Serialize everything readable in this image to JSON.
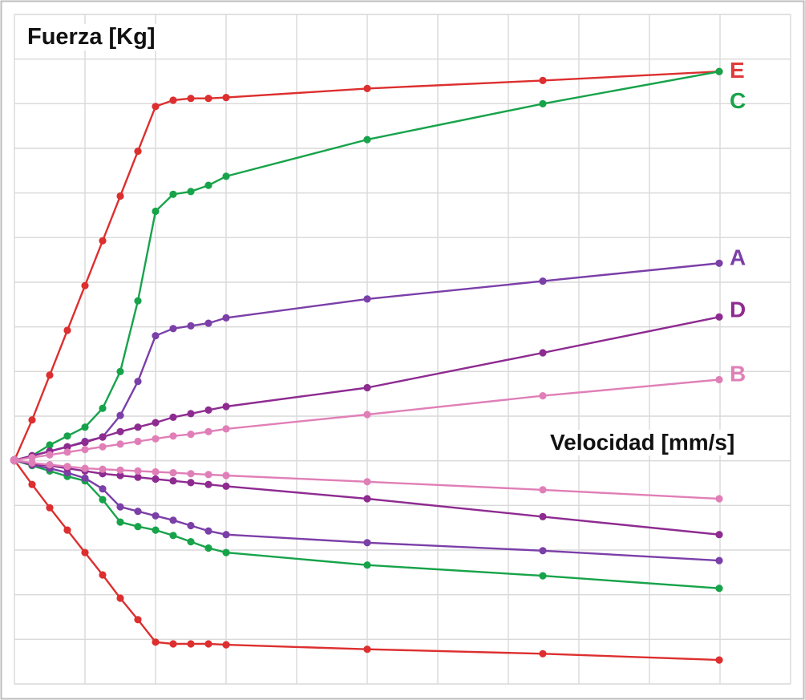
{
  "chart_data": {
    "type": "line",
    "title": "",
    "ylabel": "Fuerza [Kg]",
    "xlabel": "Velocidad [mm/s]",
    "grid": true,
    "legend": "inline labels at line ends (right)",
    "xlim": [
      0,
      44
    ],
    "ylim": [
      -25,
      45
    ],
    "x": [
      0,
      1,
      2,
      3,
      4,
      5,
      6,
      7,
      8,
      9,
      10,
      11,
      12,
      13,
      21,
      30,
      40
    ],
    "series": [
      {
        "name": "E",
        "color": "#dd2f2f",
        "label_color": "#e03a3a",
        "upper": [
          [
            0,
            0
          ],
          [
            1,
            4.5
          ],
          [
            2,
            9.5
          ],
          [
            3,
            14.5
          ],
          [
            4,
            19.5
          ],
          [
            5,
            24.5
          ],
          [
            6,
            29.5
          ],
          [
            7,
            34.5
          ],
          [
            8,
            39.5
          ],
          [
            9,
            40.2
          ],
          [
            10,
            40.4
          ],
          [
            11,
            40.4
          ],
          [
            12,
            40.5
          ],
          [
            21,
            41.5
          ],
          [
            30,
            42.4
          ],
          [
            40,
            43.4
          ]
        ],
        "lower": [
          [
            0,
            0
          ],
          [
            1,
            -2.7
          ],
          [
            2,
            -5.3
          ],
          [
            3,
            -7.8
          ],
          [
            4,
            -10.3
          ],
          [
            5,
            -12.8
          ],
          [
            6,
            -15.4
          ],
          [
            7,
            -17.8
          ],
          [
            8,
            -20.3
          ],
          [
            9,
            -20.5
          ],
          [
            10,
            -20.5
          ],
          [
            11,
            -20.5
          ],
          [
            12,
            -20.6
          ],
          [
            21,
            -21.1
          ],
          [
            30,
            -21.6
          ],
          [
            40,
            -22.3
          ]
        ]
      },
      {
        "name": "C",
        "color": "#17a34a",
        "label_color": "#1aa34a",
        "upper": [
          [
            0,
            0
          ],
          [
            1,
            0.5
          ],
          [
            2,
            1.7
          ],
          [
            3,
            2.7
          ],
          [
            4,
            3.7
          ],
          [
            5,
            5.8
          ],
          [
            6,
            9.9
          ],
          [
            7,
            17.8
          ],
          [
            8,
            27.8
          ],
          [
            9,
            29.7
          ],
          [
            10,
            30.0
          ],
          [
            11,
            30.7
          ],
          [
            12,
            31.7
          ],
          [
            21,
            35.8
          ],
          [
            30,
            39.8
          ],
          [
            40,
            43.4
          ]
        ],
        "lower": [
          [
            0,
            0
          ],
          [
            1,
            -0.6
          ],
          [
            2,
            -1.2
          ],
          [
            3,
            -1.8
          ],
          [
            4,
            -2.3
          ],
          [
            5,
            -4.4
          ],
          [
            6,
            -6.9
          ],
          [
            7,
            -7.4
          ],
          [
            8,
            -7.8
          ],
          [
            9,
            -8.4
          ],
          [
            10,
            -9.1
          ],
          [
            11,
            -9.8
          ],
          [
            12,
            -10.3
          ],
          [
            21,
            -11.7
          ],
          [
            30,
            -12.9
          ],
          [
            40,
            -14.3
          ]
        ]
      },
      {
        "name": "A",
        "color": "#7b3fa8",
        "label_color": "#7b3fa8",
        "upper": [
          [
            0,
            0
          ],
          [
            1,
            0.5
          ],
          [
            2,
            1.0
          ],
          [
            3,
            1.5
          ],
          [
            4,
            2.1
          ],
          [
            5,
            2.6
          ],
          [
            6,
            5.0
          ],
          [
            7,
            8.8
          ],
          [
            8,
            13.9
          ],
          [
            9,
            14.7
          ],
          [
            10,
            15.0
          ],
          [
            11,
            15.3
          ],
          [
            12,
            15.9
          ],
          [
            21,
            18.0
          ],
          [
            30,
            20.0
          ],
          [
            40,
            22.0
          ]
        ],
        "lower": [
          [
            0,
            0
          ],
          [
            1,
            -0.5
          ],
          [
            2,
            -0.9
          ],
          [
            3,
            -1.4
          ],
          [
            4,
            -2.0
          ],
          [
            5,
            -3.2
          ],
          [
            6,
            -5.2
          ],
          [
            7,
            -5.7
          ],
          [
            8,
            -6.2
          ],
          [
            9,
            -6.7
          ],
          [
            10,
            -7.3
          ],
          [
            11,
            -7.9
          ],
          [
            12,
            -8.3
          ],
          [
            21,
            -9.2
          ],
          [
            30,
            -10.1
          ],
          [
            40,
            -11.2
          ]
        ]
      },
      {
        "name": "D",
        "color": "#8e2b91",
        "label_color": "#8e2b91",
        "upper": [
          [
            0,
            0
          ],
          [
            1,
            0.5
          ],
          [
            2,
            1.0
          ],
          [
            3,
            1.5
          ],
          [
            4,
            2.0
          ],
          [
            5,
            2.6
          ],
          [
            6,
            3.2
          ],
          [
            7,
            3.7
          ],
          [
            8,
            4.2
          ],
          [
            9,
            4.8
          ],
          [
            10,
            5.2
          ],
          [
            11,
            5.6
          ],
          [
            12,
            6.0
          ],
          [
            21,
            8.1
          ],
          [
            30,
            12.0
          ],
          [
            40,
            16.0
          ]
        ],
        "lower": [
          [
            0,
            0
          ],
          [
            1,
            -0.4
          ],
          [
            2,
            -0.6
          ],
          [
            3,
            -0.9
          ],
          [
            4,
            -1.2
          ],
          [
            5,
            -1.5
          ],
          [
            6,
            -1.7
          ],
          [
            7,
            -1.9
          ],
          [
            8,
            -2.1
          ],
          [
            9,
            -2.3
          ],
          [
            10,
            -2.5
          ],
          [
            11,
            -2.7
          ],
          [
            12,
            -2.9
          ],
          [
            21,
            -4.3
          ],
          [
            30,
            -6.3
          ],
          [
            40,
            -8.3
          ]
        ]
      },
      {
        "name": "B",
        "color": "#e07fb7",
        "label_color": "#e07fb7",
        "upper": [
          [
            0,
            0
          ],
          [
            1,
            0.3
          ],
          [
            2,
            0.6
          ],
          [
            3,
            0.9
          ],
          [
            4,
            1.2
          ],
          [
            5,
            1.5
          ],
          [
            6,
            1.8
          ],
          [
            7,
            2.1
          ],
          [
            8,
            2.4
          ],
          [
            9,
            2.7
          ],
          [
            10,
            2.9
          ],
          [
            11,
            3.2
          ],
          [
            12,
            3.5
          ],
          [
            21,
            5.1
          ],
          [
            30,
            7.2
          ],
          [
            40,
            9.0
          ]
        ],
        "lower": [
          [
            0,
            0
          ],
          [
            1,
            -0.3
          ],
          [
            2,
            -0.5
          ],
          [
            3,
            -0.7
          ],
          [
            4,
            -0.9
          ],
          [
            5,
            -1.0
          ],
          [
            6,
            -1.1
          ],
          [
            7,
            -1.2
          ],
          [
            8,
            -1.3
          ],
          [
            9,
            -1.4
          ],
          [
            10,
            -1.5
          ],
          [
            11,
            -1.6
          ],
          [
            12,
            -1.7
          ],
          [
            21,
            -2.4
          ],
          [
            30,
            -3.3
          ],
          [
            40,
            -4.3
          ]
        ]
      }
    ]
  }
}
